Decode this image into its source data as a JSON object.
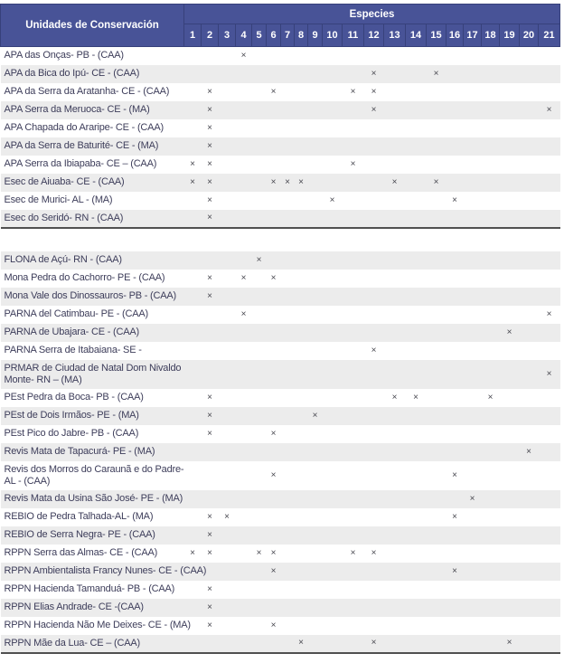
{
  "header": {
    "unit_column_title": "Unidades de Conservación",
    "species_group_title": "Especies",
    "species_numbers": [
      "1",
      "2",
      "3",
      "4",
      "5",
      "6",
      "7",
      "8",
      "9",
      "10",
      "11",
      "12",
      "13",
      "14",
      "15",
      "16",
      "17",
      "18",
      "19",
      "20",
      "21"
    ]
  },
  "mark_symbol": "×",
  "colors": {
    "header_bg": "#485397",
    "header_border": "#37417b",
    "stripe": "#ececec",
    "text": "#3d3d5a",
    "mark": "#47474f",
    "separator": "#505050"
  },
  "sections": [
    {
      "rows": [
        {
          "label": "APA das Onças- PB - (CAA)",
          "marks": [
            4
          ]
        },
        {
          "label": "APA da Bica do Ipú- CE - (CAA)",
          "marks": [
            12,
            15
          ]
        },
        {
          "label": "APA da Serra da Aratanha- CE - (CAA)",
          "marks": [
            2,
            6,
            11,
            12
          ]
        },
        {
          "label": "APA Serra da Meruoca- CE - (MA)",
          "marks": [
            2,
            12,
            21
          ]
        },
        {
          "label": "APA Chapada do Araripe- CE - (CAA)",
          "marks": [
            2
          ]
        },
        {
          "label": "APA da Serra de Baturité- CE - (MA)",
          "marks": [
            2
          ]
        },
        {
          "label": "APA Serra da Ibiapaba- CE – (CAA)",
          "marks": [
            1,
            2,
            11
          ]
        },
        {
          "label": "Esec de Aiuaba- CE - (CAA)",
          "marks": [
            1,
            2,
            6,
            7,
            8,
            13,
            15
          ]
        },
        {
          "label": "Esec de Murici- AL - (MA)",
          "marks": [
            2,
            10,
            16
          ]
        },
        {
          "label": "Esec do Seridó- RN - (CAA)",
          "marks": [
            2
          ]
        }
      ]
    },
    {
      "rows": [
        {
          "label": "FLONA de Açú- RN - (CAA)",
          "marks": [
            5
          ]
        },
        {
          "label": "Mona Pedra do Cachorro- PE - (CAA)",
          "marks": [
            2,
            4,
            6
          ]
        },
        {
          "label": "Mona Vale dos Dinossauros- PB - (CAA)",
          "marks": [
            2
          ]
        },
        {
          "label": "PARNA del Catimbau- PE - (CAA)",
          "marks": [
            4,
            21
          ]
        },
        {
          "label": "PARNA de Ubajara- CE - (CAA)",
          "marks": [
            19
          ]
        },
        {
          "label": "PARNA Serra de Itabaiana- SE -",
          "marks": [
            12
          ]
        },
        {
          "label": "PRMAR de Ciudad de Natal Dom Nivaldo Monte- RN – (MA)",
          "marks": [
            21
          ]
        },
        {
          "label": "PEst Pedra da Boca- PB - (CAA)",
          "marks": [
            2,
            13,
            14,
            18
          ]
        },
        {
          "label": "PEst de Dois Irmãos- PE - (MA)",
          "marks": [
            2,
            9
          ]
        },
        {
          "label": "PEst Pico do Jabre- PB - (CAA)",
          "marks": [
            2,
            6
          ]
        },
        {
          "label": "Revis Mata de Tapacurá- PE - (MA)",
          "marks": [
            20
          ]
        },
        {
          "label": "Revis dos Morros do Caraunã e do Padre- AL - (CAA)",
          "marks": [
            6,
            16
          ]
        },
        {
          "label": "Revis Mata da Usina São José- PE - (MA)",
          "marks": [
            17
          ]
        },
        {
          "label": "REBIO de Pedra Talhada-AL- (MA)",
          "marks": [
            2,
            3,
            16
          ]
        },
        {
          "label": "REBIO de Serra Negra- PE - (CAA)",
          "marks": [
            2
          ]
        },
        {
          "label": "RPPN Serra das Almas- CE - (CAA)",
          "marks": [
            1,
            2,
            5,
            6,
            11,
            12
          ]
        },
        {
          "label": "RPPN Ambientalista Francy Nunes- CE - (CAA)",
          "marks": [
            6,
            16
          ]
        },
        {
          "label": "RPPN Hacienda Tamanduá- PB - (CAA)",
          "marks": [
            2
          ]
        },
        {
          "label": "RPPN Elias Andrade- CE -(CAA)",
          "marks": [
            2
          ]
        },
        {
          "label": "RPPN Hacienda Não Me Deixes- CE - (MA)",
          "marks": [
            2,
            6
          ]
        },
        {
          "label": "RPPN Mãe da Lua- CE – (CAA)",
          "marks": [
            8,
            12,
            19
          ]
        }
      ]
    }
  ]
}
